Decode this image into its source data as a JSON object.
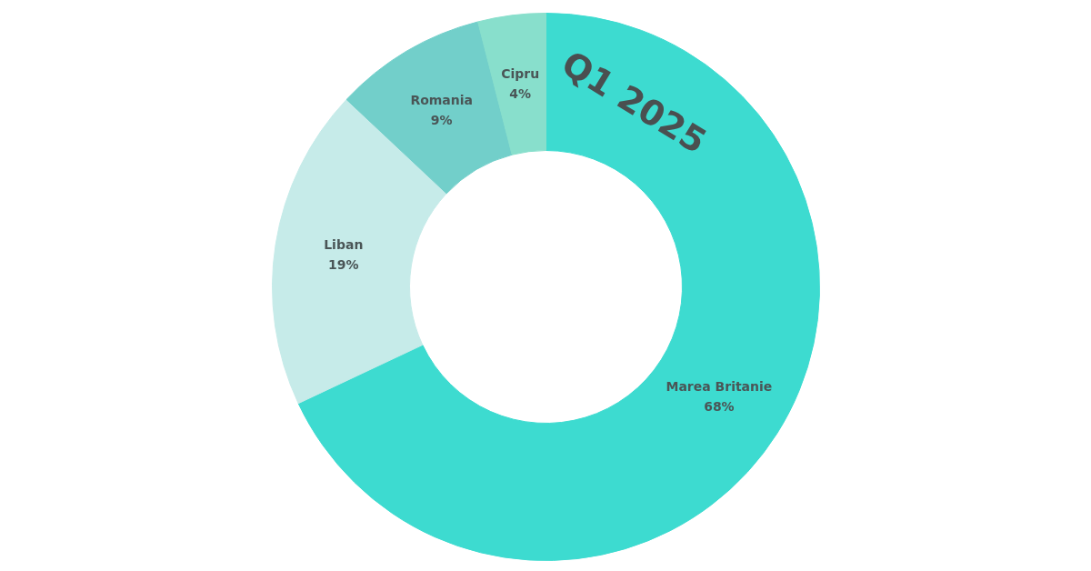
{
  "chart_data": {
    "type": "donut",
    "title": "Q1 2025",
    "categories": [
      "Marea Britanie",
      "Liban",
      "Romania",
      "Cipru"
    ],
    "values": [
      68,
      19,
      9,
      4
    ],
    "colors": [
      "#3ddbd0",
      "#c6ebe9",
      "#72cfca",
      "#88dfcc"
    ],
    "value_labels": [
      "68%",
      "19%",
      "9%",
      "4%"
    ],
    "legend": false
  }
}
